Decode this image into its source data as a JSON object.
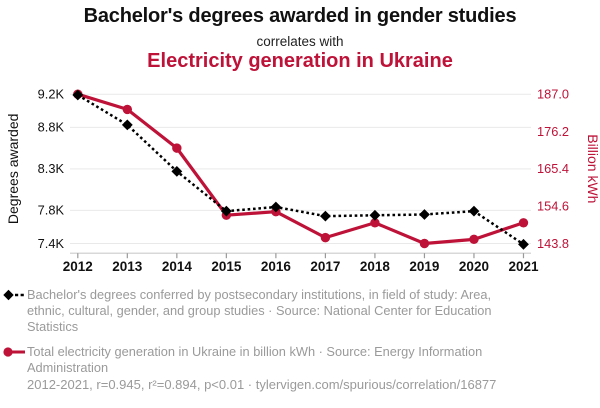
{
  "header": {
    "title": "Bachelor's degrees awarded in gender studies",
    "connector": "correlates with",
    "subtitle": "Electricity generation in Ukraine"
  },
  "colors": {
    "accent_red": "#be1238",
    "series_black": "#000000",
    "text_dark": "#111111",
    "legend_gray": "#9a9a9a",
    "gridline": "#e9e9e9",
    "axis_line": "#cccccc",
    "tick_mark": "#999999"
  },
  "chart_data": {
    "type": "line",
    "title": "Bachelor's degrees awarded in gender studies correlates with Electricity generation in Ukraine",
    "x": [
      "2012",
      "2013",
      "2014",
      "2015",
      "2016",
      "2017",
      "2018",
      "2019",
      "2020",
      "2021"
    ],
    "series": [
      {
        "name": "Bachelor's degrees conferred by postsecondary institutions, in field of study: Area, ethnic, cultural, gender, and group studies",
        "axis": "left",
        "style": "dashed",
        "marker": "diamond",
        "color_key": "series_black",
        "values": [
          9190,
          8830,
          8270,
          7790,
          7840,
          7730,
          7740,
          7750,
          7790,
          7390
        ]
      },
      {
        "name": "Total electricity generation in Ukraine in billion kWh",
        "axis": "right",
        "style": "solid",
        "marker": "circle",
        "color_key": "accent_red",
        "values": [
          187.0,
          182.6,
          171.4,
          152.0,
          153.0,
          145.5,
          149.8,
          143.8,
          145.0,
          149.8
        ]
      }
    ],
    "left_axis": {
      "label": "Degrees awarded",
      "min": 7400,
      "max": 9200,
      "ticks": [
        {
          "value": 9200,
          "label": "9.2K"
        },
        {
          "value": 8800,
          "label": "8.8K"
        },
        {
          "value": 8300,
          "label": "8.3K"
        },
        {
          "value": 7800,
          "label": "7.8K"
        },
        {
          "value": 7400,
          "label": "7.4K"
        }
      ]
    },
    "right_axis": {
      "label": "Billion kWh",
      "min": 143.8,
      "max": 187.0,
      "ticks": [
        {
          "value": 187.0,
          "label": "187.0"
        },
        {
          "value": 176.2,
          "label": "176.2"
        },
        {
          "value": 165.4,
          "label": "165.4"
        },
        {
          "value": 154.6,
          "label": "154.6"
        },
        {
          "value": 143.8,
          "label": "143.8"
        }
      ]
    },
    "grid": true,
    "legend_position": "bottom"
  },
  "legend": [
    {
      "marker": "black-diamond-dashed-line",
      "text": "Bachelor's degrees conferred by postsecondary institutions, in field of study: Area, ethnic, cultural, gender, and group studies · Source: National Center for Education Statistics"
    },
    {
      "marker": "red-circle-solid-line",
      "text": "Total electricity generation in Ukraine in billion kWh · Source: Energy Information Administration"
    }
  ],
  "footer": "2012-2021, r=0.945, r²=0.894, p<0.01 · tylervigen.com/spurious/correlation/16877"
}
